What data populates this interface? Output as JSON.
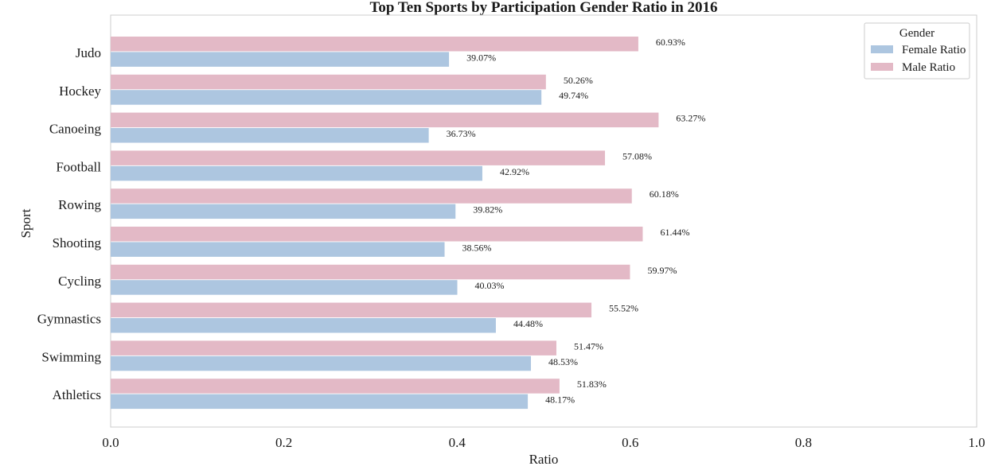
{
  "colors": {
    "female": "#adc6e0",
    "male": "#e3b9c6",
    "frame": "#cccccc",
    "text": "#1a1a1a"
  },
  "chart_data": {
    "type": "bar",
    "orientation": "horizontal",
    "title": "Top Ten Sports by Participation Gender Ratio in 2016",
    "xlabel": "Ratio",
    "ylabel": "Sport",
    "xlim": [
      0.0,
      1.0
    ],
    "xticks": [
      "0.0",
      "0.2",
      "0.4",
      "0.6",
      "0.8",
      "1.0"
    ],
    "grid": false,
    "legend": {
      "title": "Gender",
      "position": "top-right",
      "entries": [
        "Female Ratio",
        "Male Ratio"
      ]
    },
    "categories": [
      "Judo",
      "Hockey",
      "Canoeing",
      "Football",
      "Rowing",
      "Shooting",
      "Cycling",
      "Gymnastics",
      "Swimming",
      "Athletics"
    ],
    "series": [
      {
        "name": "Male Ratio",
        "values": [
          0.6093,
          0.5026,
          0.6327,
          0.5708,
          0.6018,
          0.6144,
          0.5997,
          0.5552,
          0.5147,
          0.5183
        ],
        "labels": [
          "60.93%",
          "50.26%",
          "63.27%",
          "57.08%",
          "60.18%",
          "61.44%",
          "59.97%",
          "55.52%",
          "51.47%",
          "51.83%"
        ]
      },
      {
        "name": "Female Ratio",
        "values": [
          0.3907,
          0.4974,
          0.3673,
          0.4292,
          0.3982,
          0.3856,
          0.4003,
          0.4448,
          0.4853,
          0.4817
        ],
        "labels": [
          "39.07%",
          "49.74%",
          "36.73%",
          "42.92%",
          "39.82%",
          "38.56%",
          "40.03%",
          "44.48%",
          "48.53%",
          "48.17%"
        ]
      }
    ]
  }
}
